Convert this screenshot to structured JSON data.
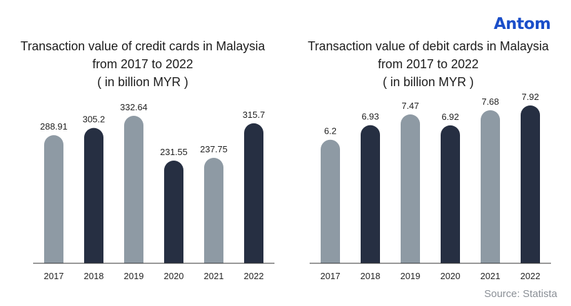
{
  "brand": {
    "logo_text": "Antom",
    "color": "#1a4ec9"
  },
  "source": "Source: Statista",
  "colors": {
    "light_bar": "#8e9aa4",
    "dark_bar": "#262f42",
    "axis": "#333333"
  },
  "chart_data": [
    {
      "type": "bar",
      "title_lines": [
        "Transaction value of credit cards in Malaysia",
        "from 2017 to 2022",
        "( in billion MYR )"
      ],
      "categories": [
        "2017",
        "2018",
        "2019",
        "2020",
        "2021",
        "2022"
      ],
      "values": [
        288.91,
        305.2,
        332.64,
        231.55,
        237.75,
        315.7
      ],
      "value_labels": [
        "288.91",
        "305.2",
        "332.64",
        "231.55",
        "237.75",
        "315.7"
      ],
      "xlabel": "",
      "ylabel": "",
      "ylim": [
        0,
        345
      ],
      "grid": false,
      "bar_colors": [
        "#8e9aa4",
        "#262f42",
        "#8e9aa4",
        "#262f42",
        "#8e9aa4",
        "#262f42"
      ]
    },
    {
      "type": "bar",
      "title_lines": [
        "Transaction value of debit cards in Malaysia",
        "from 2017 to 2022",
        "( in billion MYR )"
      ],
      "categories": [
        "2017",
        "2018",
        "2019",
        "2020",
        "2021",
        "2022"
      ],
      "values": [
        6.2,
        6.93,
        7.47,
        6.92,
        7.68,
        7.92
      ],
      "value_labels": [
        "6.2",
        "6.93",
        "7.47",
        "6.92",
        "7.68",
        "7.92"
      ],
      "xlabel": "",
      "ylabel": "",
      "ylim": [
        0,
        8.2
      ],
      "grid": false,
      "bar_colors": [
        "#8e9aa4",
        "#262f42",
        "#8e9aa4",
        "#262f42",
        "#8e9aa4",
        "#262f42"
      ]
    }
  ]
}
